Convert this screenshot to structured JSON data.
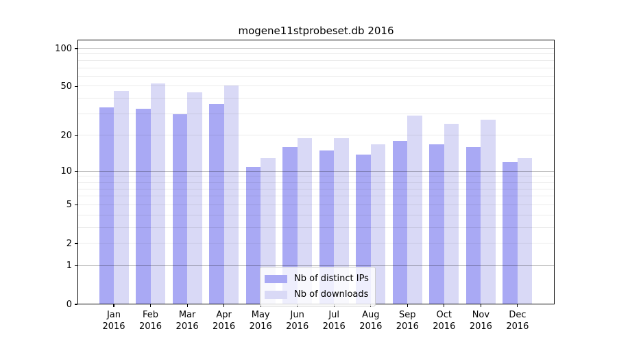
{
  "title": "mogene11stprobeset.db 2016",
  "chart_data": {
    "type": "bar",
    "title": "mogene11stprobeset.db 2016",
    "yscale": "log1p",
    "categories": [
      "Jan",
      "Feb",
      "Mar",
      "Apr",
      "May",
      "Jun",
      "Jul",
      "Aug",
      "Sep",
      "Oct",
      "Nov",
      "Dec"
    ],
    "year_label": "2016",
    "series": [
      {
        "name": "Nb of distinct IPs",
        "color": "#a9a9f4",
        "values": [
          34,
          33,
          30,
          36,
          11,
          16,
          15,
          14,
          18,
          17,
          16,
          12
        ]
      },
      {
        "name": "Nb of downloads",
        "color": "#d9d9f6",
        "values": [
          46,
          53,
          45,
          51,
          13,
          19,
          19,
          17,
          29,
          25,
          27,
          13
        ]
      }
    ],
    "yticks": [
      0,
      1,
      2,
      5,
      10,
      20,
      50,
      100
    ],
    "ylim": [
      0,
      116
    ],
    "grid": true,
    "legend_position": "lower center"
  },
  "colors": {
    "background": "#ffffff",
    "axis": "#000000",
    "major_grid": "rgba(0,0,0,0.30)",
    "minor_grid": "rgba(0,0,0,0.08)",
    "legend_border": "#cccccc",
    "legend_bg": "rgba(255,255,255,0.8)",
    "text": "#000000"
  }
}
